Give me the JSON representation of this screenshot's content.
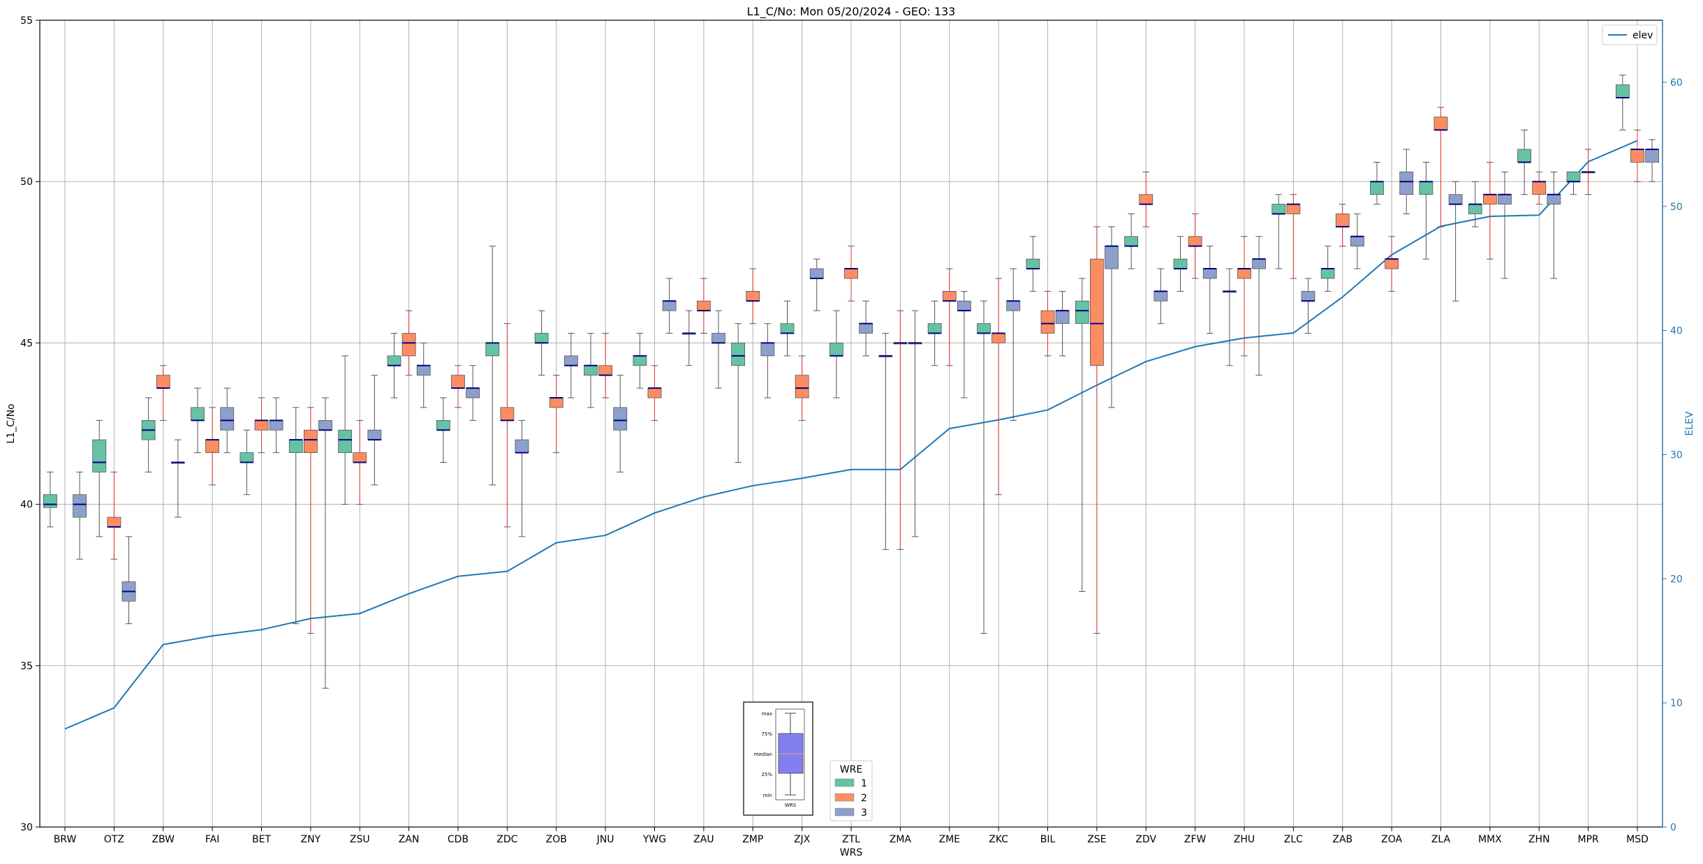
{
  "chart_data": {
    "type": "box",
    "title": "L1_C/No: Mon 05/20/2024 - GEO: 133",
    "xlabel": "WRS",
    "ylabel": "L1_C/No",
    "y2label": "ELEV",
    "ylim": [
      30,
      55
    ],
    "y2lim": [
      0,
      65
    ],
    "yticks": [
      30,
      35,
      40,
      45,
      50,
      55
    ],
    "y2ticks": [
      0,
      10,
      20,
      30,
      40,
      50,
      60
    ],
    "grid": true,
    "categories": [
      "BRW",
      "OTZ",
      "ZBW",
      "FAI",
      "BET",
      "ZNY",
      "ZSU",
      "ZAN",
      "CDB",
      "ZDC",
      "ZOB",
      "JNU",
      "YWG",
      "ZAU",
      "ZMP",
      "ZJX",
      "ZTL",
      "ZMA",
      "ZME",
      "ZKC",
      "BIL",
      "ZSE",
      "ZDV",
      "ZFW",
      "ZHU",
      "ZLC",
      "ZAB",
      "ZOA",
      "ZLA",
      "MMX",
      "ZHN",
      "MPR",
      "MSD"
    ],
    "legend": {
      "title": "WRE",
      "placement": "bottom-center",
      "entries": [
        {
          "label": "1",
          "color": "#66c2a5"
        },
        {
          "label": "2",
          "color": "#fc8d62"
        },
        {
          "label": "3",
          "color": "#8da0cb"
        }
      ]
    },
    "line_legend": {
      "label": "elev",
      "color": "#1f77b4",
      "placement": "top-right"
    },
    "key_box": {
      "labels": [
        "max",
        "75%",
        "median",
        "25%",
        "min"
      ],
      "xlabel": "WRS",
      "color": "#8080f0"
    },
    "elev": [
      7.9,
      9.6,
      14.7,
      15.4,
      15.9,
      16.8,
      17.2,
      18.8,
      20.2,
      20.6,
      22.9,
      23.5,
      25.3,
      26.6,
      27.5,
      28.1,
      28.8,
      28.8,
      32.1,
      32.8,
      33.6,
      35.6,
      37.5,
      38.7,
      39.4,
      39.8,
      42.7,
      46.1,
      48.4,
      49.2,
      49.3,
      53.6,
      55.3
    ],
    "series": [
      {
        "name": "1",
        "boxes": [
          {
            "cat": 0,
            "min": 39.3,
            "q1": 39.9,
            "med": 40.0,
            "q3": 40.3,
            "max": 41.0
          },
          {
            "cat": 1,
            "min": 39.0,
            "q1": 41.0,
            "med": 41.3,
            "q3": 42.0,
            "max": 42.6
          },
          {
            "cat": 2,
            "min": 41.0,
            "q1": 42.0,
            "med": 42.3,
            "q3": 42.6,
            "max": 43.3
          },
          {
            "cat": 3,
            "min": 41.6,
            "q1": 42.6,
            "med": 42.6,
            "q3": 43.0,
            "max": 43.6
          },
          {
            "cat": 4,
            "min": 40.3,
            "q1": 41.3,
            "med": 41.3,
            "q3": 41.6,
            "max": 42.3
          },
          {
            "cat": 5,
            "min": 36.3,
            "q1": 41.6,
            "med": 42.0,
            "q3": 42.0,
            "max": 43.0
          },
          {
            "cat": 6,
            "min": 40.0,
            "q1": 41.6,
            "med": 42.0,
            "q3": 42.3,
            "max": 44.6
          },
          {
            "cat": 7,
            "min": 43.3,
            "q1": 44.3,
            "med": 44.3,
            "q3": 44.6,
            "max": 45.3
          },
          {
            "cat": 8,
            "min": 41.3,
            "q1": 42.3,
            "med": 42.3,
            "q3": 42.6,
            "max": 43.3
          },
          {
            "cat": 9,
            "min": 40.6,
            "q1": 44.6,
            "med": 45.0,
            "q3": 45.0,
            "max": 48.0
          },
          {
            "cat": 10,
            "min": 44.0,
            "q1": 45.0,
            "med": 45.0,
            "q3": 45.3,
            "max": 46.0
          },
          {
            "cat": 11,
            "min": 43.0,
            "q1": 44.0,
            "med": 44.3,
            "q3": 44.3,
            "max": 45.3
          },
          {
            "cat": 12,
            "min": 43.6,
            "q1": 44.3,
            "med": 44.6,
            "q3": 44.6,
            "max": 45.3
          },
          {
            "cat": 13,
            "min": 44.3,
            "q1": 45.3,
            "med": 45.3,
            "q3": 45.3,
            "max": 46.0
          },
          {
            "cat": 14,
            "min": 41.3,
            "q1": 44.3,
            "med": 44.6,
            "q3": 45.0,
            "max": 45.6
          },
          {
            "cat": 15,
            "min": 44.6,
            "q1": 45.3,
            "med": 45.3,
            "q3": 45.6,
            "max": 46.3
          },
          {
            "cat": 16,
            "min": 43.3,
            "q1": 44.6,
            "med": 44.6,
            "q3": 45.0,
            "max": 46.0
          },
          {
            "cat": 17,
            "min": 38.6,
            "q1": 44.6,
            "med": 44.6,
            "q3": 44.6,
            "max": 45.3
          },
          {
            "cat": 18,
            "min": 44.3,
            "q1": 45.3,
            "med": 45.3,
            "q3": 45.6,
            "max": 46.3
          },
          {
            "cat": 19,
            "min": 36.0,
            "q1": 45.3,
            "med": 45.3,
            "q3": 45.6,
            "max": 46.3
          },
          {
            "cat": 20,
            "min": 46.6,
            "q1": 47.3,
            "med": 47.3,
            "q3": 47.6,
            "max": 48.3
          },
          {
            "cat": 21,
            "min": 37.3,
            "q1": 45.6,
            "med": 46.0,
            "q3": 46.3,
            "max": 47.0
          },
          {
            "cat": 22,
            "min": 47.3,
            "q1": 48.0,
            "med": 48.0,
            "q3": 48.3,
            "max": 49.0
          },
          {
            "cat": 23,
            "min": 46.6,
            "q1": 47.3,
            "med": 47.3,
            "q3": 47.6,
            "max": 48.3
          },
          {
            "cat": 24,
            "min": 44.3,
            "q1": 46.6,
            "med": 46.6,
            "q3": 46.6,
            "max": 47.3
          },
          {
            "cat": 25,
            "min": 47.3,
            "q1": 49.0,
            "med": 49.0,
            "q3": 49.3,
            "max": 49.6
          },
          {
            "cat": 26,
            "min": 46.6,
            "q1": 47.0,
            "med": 47.3,
            "q3": 47.3,
            "max": 48.0
          },
          {
            "cat": 27,
            "min": 49.3,
            "q1": 49.6,
            "med": 50.0,
            "q3": 50.0,
            "max": 50.6
          },
          {
            "cat": 28,
            "min": 47.6,
            "q1": 49.6,
            "med": 50.0,
            "q3": 50.0,
            "max": 50.6
          },
          {
            "cat": 29,
            "min": 48.6,
            "q1": 49.0,
            "med": 49.3,
            "q3": 49.3,
            "max": 50.0
          },
          {
            "cat": 30,
            "min": 49.6,
            "q1": 50.6,
            "med": 50.6,
            "q3": 51.0,
            "max": 51.6
          },
          {
            "cat": 31,
            "min": 49.6,
            "q1": 50.0,
            "med": 50.0,
            "q3": 50.3,
            "max": 50.3
          },
          {
            "cat": 32,
            "min": 51.6,
            "q1": 52.6,
            "med": 52.6,
            "q3": 53.0,
            "max": 53.3
          }
        ]
      },
      {
        "name": "2",
        "boxes": [
          {
            "cat": 1,
            "min": 38.3,
            "q1": 39.3,
            "med": 39.3,
            "q3": 39.6,
            "max": 41.0
          },
          {
            "cat": 2,
            "min": 42.6,
            "q1": 43.6,
            "med": 43.6,
            "q3": 44.0,
            "max": 44.3
          },
          {
            "cat": 3,
            "min": 40.6,
            "q1": 41.6,
            "med": 42.0,
            "q3": 42.0,
            "max": 43.0
          },
          {
            "cat": 4,
            "min": 41.6,
            "q1": 42.3,
            "med": 42.6,
            "q3": 42.6,
            "max": 43.3
          },
          {
            "cat": 5,
            "min": 36.0,
            "q1": 41.6,
            "med": 42.0,
            "q3": 42.3,
            "max": 43.0
          },
          {
            "cat": 6,
            "min": 40.0,
            "q1": 41.3,
            "med": 41.3,
            "q3": 41.6,
            "max": 42.6
          },
          {
            "cat": 7,
            "min": 44.0,
            "q1": 44.6,
            "med": 45.0,
            "q3": 45.3,
            "max": 46.0
          },
          {
            "cat": 8,
            "min": 43.0,
            "q1": 43.6,
            "med": 43.6,
            "q3": 44.0,
            "max": 44.3
          },
          {
            "cat": 9,
            "min": 39.3,
            "q1": 42.6,
            "med": 42.6,
            "q3": 43.0,
            "max": 45.6
          },
          {
            "cat": 10,
            "min": 41.6,
            "q1": 43.0,
            "med": 43.3,
            "q3": 43.3,
            "max": 44.0
          },
          {
            "cat": 11,
            "min": 43.3,
            "q1": 44.0,
            "med": 44.0,
            "q3": 44.3,
            "max": 45.3
          },
          {
            "cat": 12,
            "min": 42.6,
            "q1": 43.3,
            "med": 43.6,
            "q3": 43.6,
            "max": 44.3
          },
          {
            "cat": 13,
            "min": 45.3,
            "q1": 46.0,
            "med": 46.0,
            "q3": 46.3,
            "max": 47.0
          },
          {
            "cat": 14,
            "min": 45.6,
            "q1": 46.3,
            "med": 46.3,
            "q3": 46.6,
            "max": 47.3
          },
          {
            "cat": 15,
            "min": 42.6,
            "q1": 43.3,
            "med": 43.6,
            "q3": 44.0,
            "max": 44.6
          },
          {
            "cat": 16,
            "min": 46.3,
            "q1": 47.0,
            "med": 47.3,
            "q3": 47.3,
            "max": 48.0
          },
          {
            "cat": 17,
            "min": 38.6,
            "q1": 45.0,
            "med": 45.0,
            "q3": 45.0,
            "max": 46.0
          },
          {
            "cat": 18,
            "min": 44.3,
            "q1": 46.3,
            "med": 46.3,
            "q3": 46.6,
            "max": 47.3
          },
          {
            "cat": 19,
            "min": 40.3,
            "q1": 45.0,
            "med": 45.3,
            "q3": 45.3,
            "max": 47.0
          },
          {
            "cat": 20,
            "min": 44.6,
            "q1": 45.3,
            "med": 45.6,
            "q3": 46.0,
            "max": 46.6
          },
          {
            "cat": 21,
            "min": 36.0,
            "q1": 44.3,
            "med": 45.6,
            "q3": 47.6,
            "max": 48.6
          },
          {
            "cat": 22,
            "min": 48.6,
            "q1": 49.3,
            "med": 49.3,
            "q3": 49.6,
            "max": 50.3
          },
          {
            "cat": 23,
            "min": 47.0,
            "q1": 48.0,
            "med": 48.0,
            "q3": 48.3,
            "max": 49.0
          },
          {
            "cat": 24,
            "min": 44.6,
            "q1": 47.0,
            "med": 47.3,
            "q3": 47.3,
            "max": 48.3
          },
          {
            "cat": 25,
            "min": 47.0,
            "q1": 49.0,
            "med": 49.3,
            "q3": 49.3,
            "max": 49.6
          },
          {
            "cat": 26,
            "min": 48.0,
            "q1": 48.6,
            "med": 48.6,
            "q3": 49.0,
            "max": 49.3
          },
          {
            "cat": 27,
            "min": 46.6,
            "q1": 47.3,
            "med": 47.6,
            "q3": 47.6,
            "max": 48.3
          },
          {
            "cat": 28,
            "min": 48.6,
            "q1": 51.6,
            "med": 51.6,
            "q3": 52.0,
            "max": 52.3
          },
          {
            "cat": 29,
            "min": 47.6,
            "q1": 49.3,
            "med": 49.6,
            "q3": 49.6,
            "max": 50.6
          },
          {
            "cat": 30,
            "min": 49.3,
            "q1": 49.6,
            "med": 50.0,
            "q3": 50.0,
            "max": 50.3
          },
          {
            "cat": 31,
            "min": 49.6,
            "q1": 50.3,
            "med": 50.3,
            "q3": 50.3,
            "max": 51.0
          },
          {
            "cat": 32,
            "min": 50.0,
            "q1": 50.6,
            "med": 51.0,
            "q3": 51.0,
            "max": 51.6
          }
        ]
      },
      {
        "name": "3",
        "boxes": [
          {
            "cat": 0,
            "min": 38.3,
            "q1": 39.6,
            "med": 40.0,
            "q3": 40.3,
            "max": 41.0
          },
          {
            "cat": 1,
            "min": 36.3,
            "q1": 37.0,
            "med": 37.3,
            "q3": 37.6,
            "max": 39.0
          },
          {
            "cat": 2,
            "min": 39.6,
            "q1": 41.3,
            "med": 41.3,
            "q3": 41.3,
            "max": 42.0
          },
          {
            "cat": 3,
            "min": 41.6,
            "q1": 42.3,
            "med": 42.6,
            "q3": 43.0,
            "max": 43.6
          },
          {
            "cat": 4,
            "min": 41.6,
            "q1": 42.3,
            "med": 42.6,
            "q3": 42.6,
            "max": 43.3
          },
          {
            "cat": 5,
            "min": 34.3,
            "q1": 42.3,
            "med": 42.3,
            "q3": 42.6,
            "max": 43.3
          },
          {
            "cat": 6,
            "min": 40.6,
            "q1": 42.0,
            "med": 42.0,
            "q3": 42.3,
            "max": 44.0
          },
          {
            "cat": 7,
            "min": 43.0,
            "q1": 44.0,
            "med": 44.3,
            "q3": 44.3,
            "max": 45.0
          },
          {
            "cat": 8,
            "min": 42.6,
            "q1": 43.3,
            "med": 43.6,
            "q3": 43.6,
            "max": 44.3
          },
          {
            "cat": 9,
            "min": 39.0,
            "q1": 41.6,
            "med": 41.6,
            "q3": 42.0,
            "max": 42.6
          },
          {
            "cat": 10,
            "min": 43.3,
            "q1": 44.3,
            "med": 44.3,
            "q3": 44.6,
            "max": 45.3
          },
          {
            "cat": 11,
            "min": 41.0,
            "q1": 42.3,
            "med": 42.6,
            "q3": 43.0,
            "max": 44.0
          },
          {
            "cat": 12,
            "min": 45.3,
            "q1": 46.0,
            "med": 46.3,
            "q3": 46.3,
            "max": 47.0
          },
          {
            "cat": 13,
            "min": 43.6,
            "q1": 45.0,
            "med": 45.0,
            "q3": 45.3,
            "max": 46.0
          },
          {
            "cat": 14,
            "min": 43.3,
            "q1": 44.6,
            "med": 45.0,
            "q3": 45.0,
            "max": 45.6
          },
          {
            "cat": 15,
            "min": 46.0,
            "q1": 47.0,
            "med": 47.0,
            "q3": 47.3,
            "max": 47.6
          },
          {
            "cat": 16,
            "min": 44.6,
            "q1": 45.3,
            "med": 45.6,
            "q3": 45.6,
            "max": 46.3
          },
          {
            "cat": 17,
            "min": 39.0,
            "q1": 45.0,
            "med": 45.0,
            "q3": 45.0,
            "max": 46.0
          },
          {
            "cat": 18,
            "min": 43.3,
            "q1": 46.0,
            "med": 46.0,
            "q3": 46.3,
            "max": 46.6
          },
          {
            "cat": 19,
            "min": 42.6,
            "q1": 46.0,
            "med": 46.3,
            "q3": 46.3,
            "max": 47.3
          },
          {
            "cat": 20,
            "min": 44.6,
            "q1": 45.6,
            "med": 46.0,
            "q3": 46.0,
            "max": 46.6
          },
          {
            "cat": 21,
            "min": 43.0,
            "q1": 47.3,
            "med": 48.0,
            "q3": 48.0,
            "max": 48.6
          },
          {
            "cat": 22,
            "min": 45.6,
            "q1": 46.3,
            "med": 46.6,
            "q3": 46.6,
            "max": 47.3
          },
          {
            "cat": 23,
            "min": 45.3,
            "q1": 47.0,
            "med": 47.3,
            "q3": 47.3,
            "max": 48.0
          },
          {
            "cat": 24,
            "min": 44.0,
            "q1": 47.3,
            "med": 47.6,
            "q3": 47.6,
            "max": 48.3
          },
          {
            "cat": 25,
            "min": 45.3,
            "q1": 46.3,
            "med": 46.3,
            "q3": 46.6,
            "max": 47.0
          },
          {
            "cat": 26,
            "min": 47.3,
            "q1": 48.0,
            "med": 48.3,
            "q3": 48.3,
            "max": 49.0
          },
          {
            "cat": 27,
            "min": 49.0,
            "q1": 49.6,
            "med": 50.0,
            "q3": 50.3,
            "max": 51.0
          },
          {
            "cat": 28,
            "min": 46.3,
            "q1": 49.3,
            "med": 49.3,
            "q3": 49.6,
            "max": 50.0
          },
          {
            "cat": 29,
            "min": 47.0,
            "q1": 49.3,
            "med": 49.6,
            "q3": 49.6,
            "max": 50.3
          },
          {
            "cat": 30,
            "min": 47.0,
            "q1": 49.3,
            "med": 49.6,
            "q3": 49.6,
            "max": 50.3
          },
          {
            "cat": 32,
            "min": 50.0,
            "q1": 50.6,
            "med": 51.0,
            "q3": 51.0,
            "max": 51.3
          }
        ]
      }
    ]
  }
}
